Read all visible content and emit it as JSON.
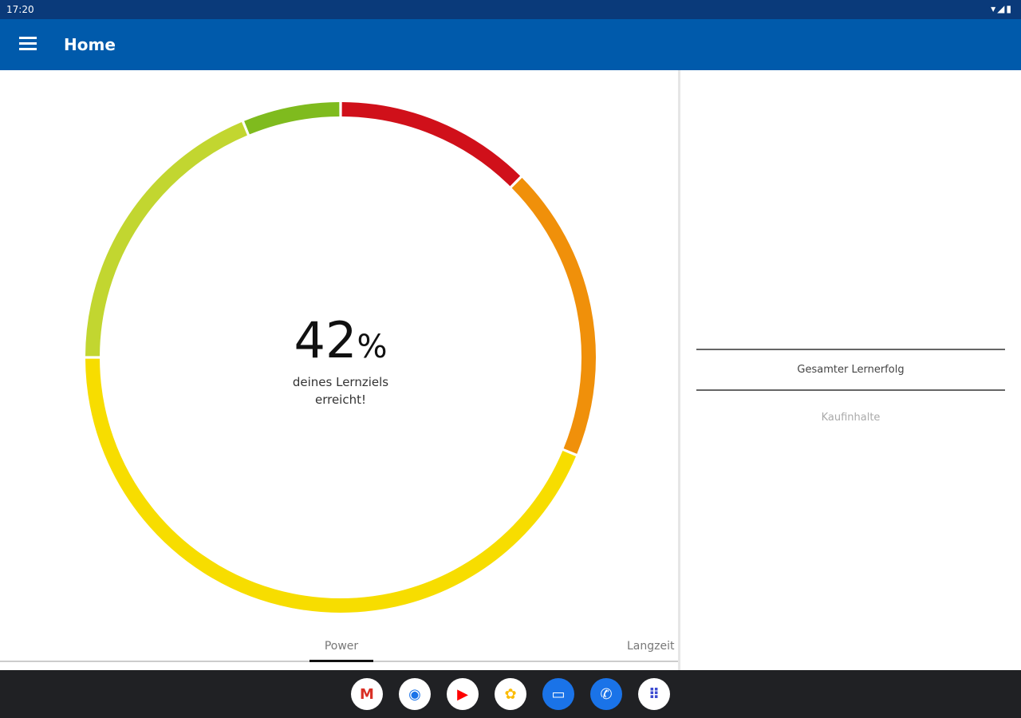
{
  "status_bar": {
    "time": "17:20",
    "icons": [
      "wifi-icon",
      "signal-icon",
      "battery-icon"
    ]
  },
  "app_bar": {
    "title": "Home",
    "menu_icon": "hamburger-menu-icon"
  },
  "progress": {
    "percent_value": "42",
    "percent_sign": "%",
    "caption_line1": "deines Lernziels",
    "caption_line2": "erreicht!",
    "ring_segments": [
      {
        "color": "#d0101a",
        "share": 12.5
      },
      {
        "color": "#f0900a",
        "share": 18.75
      },
      {
        "color": "#f7dd00",
        "share": 43.75
      },
      {
        "color": "#c2d630",
        "share": 18.75
      },
      {
        "color": "#7fbb1e",
        "share": 6.25
      }
    ]
  },
  "tabs": [
    {
      "label": "Power",
      "selected": true
    },
    {
      "label": "Langzeit",
      "selected": false
    }
  ],
  "right_panel": {
    "item1": "Gesamter Lernerfolg",
    "item2": "Kaufinhalte"
  },
  "dock": [
    {
      "name": "gmail",
      "glyph": "M",
      "color": "#d93025"
    },
    {
      "name": "chrome",
      "glyph": "◉",
      "color": "#1a73e8"
    },
    {
      "name": "youtube",
      "glyph": "▶",
      "color": "#ff0000"
    },
    {
      "name": "photos",
      "glyph": "✿",
      "color": "#fbbc04"
    },
    {
      "name": "messages",
      "glyph": "▭",
      "color": "#1a73e8"
    },
    {
      "name": "phone",
      "glyph": "✆",
      "color": "#1a73e8"
    },
    {
      "name": "apps",
      "glyph": "⠿",
      "color": "#3c4bd1"
    }
  ]
}
